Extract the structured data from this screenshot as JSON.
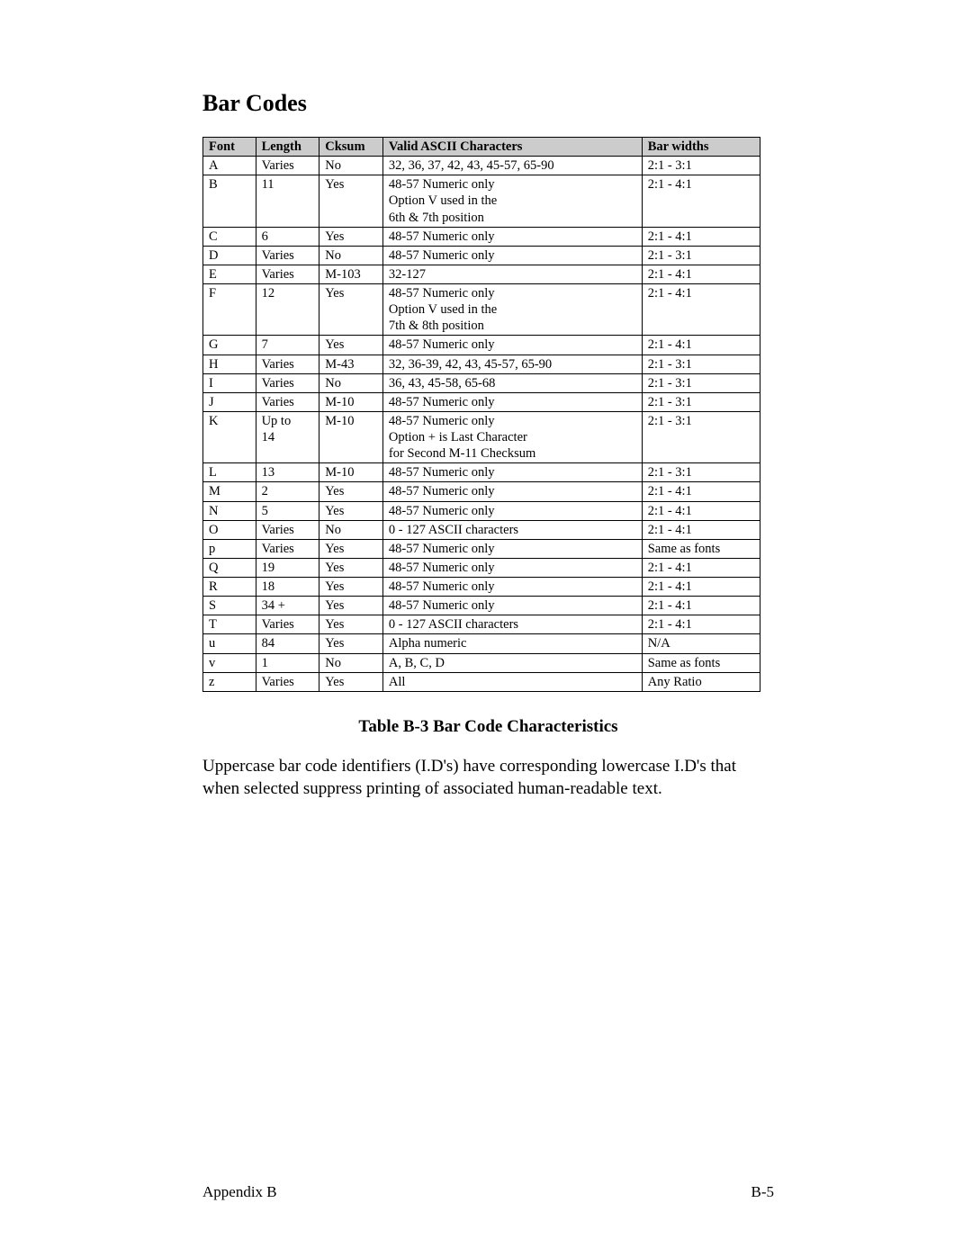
{
  "title": "Bar Codes",
  "table": {
    "columns": [
      "Font",
      "Length",
      "Cksum",
      "Valid ASCII Characters",
      "Bar widths"
    ],
    "rows": [
      [
        "A",
        "Varies",
        "No",
        "32, 36, 37, 42, 43, 45-57, 65-90",
        "2:1 - 3:1"
      ],
      [
        "B",
        "11",
        "Yes",
        "48-57 Numeric only\nOption V used in the\n6th & 7th position",
        "2:1 - 4:1"
      ],
      [
        "C",
        "6",
        "Yes",
        "48-57 Numeric only",
        "2:1 - 4:1"
      ],
      [
        "D",
        "Varies",
        "No",
        "48-57 Numeric only",
        "2:1 - 3:1"
      ],
      [
        "E",
        "Varies",
        "M-103",
        "32-127",
        "2:1 - 4:1"
      ],
      [
        "F",
        "12",
        "Yes",
        "48-57 Numeric only\nOption V used in the\n7th & 8th position",
        "2:1 - 4:1"
      ],
      [
        "G",
        "7",
        "Yes",
        "48-57 Numeric only",
        "2:1 - 4:1"
      ],
      [
        "H",
        "Varies",
        "M-43",
        "32, 36-39, 42, 43, 45-57, 65-90",
        "2:1 - 3:1"
      ],
      [
        "I",
        "Varies",
        "No",
        "36, 43, 45-58, 65-68",
        "2:1 - 3:1"
      ],
      [
        "J",
        "Varies",
        "M-10",
        "48-57 Numeric only",
        "2:1 - 3:1"
      ],
      [
        "K",
        "Up to\n14",
        "M-10",
        "48-57 Numeric only\nOption + is Last Character\nfor Second M-11 Checksum",
        "2:1 - 3:1"
      ],
      [
        "L",
        "13",
        "M-10",
        "48-57 Numeric only",
        "2:1 - 3:1"
      ],
      [
        "M",
        "2",
        "Yes",
        "48-57 Numeric only",
        "2:1 - 4:1"
      ],
      [
        "N",
        "5",
        "Yes",
        "48-57 Numeric only",
        "2:1 - 4:1"
      ],
      [
        "O",
        "Varies",
        "No",
        "0 - 127 ASCII characters",
        "2:1 - 4:1"
      ],
      [
        "p",
        "Varies",
        "Yes",
        "48-57 Numeric only",
        "Same as fonts"
      ],
      [
        "Q",
        "19",
        "Yes",
        "48-57 Numeric only",
        "2:1 - 4:1"
      ],
      [
        "R",
        "18",
        "Yes",
        "48-57 Numeric only",
        "2:1 - 4:1"
      ],
      [
        "S",
        "34 +",
        "Yes",
        "48-57 Numeric only",
        "2:1 - 4:1"
      ],
      [
        "T",
        "Varies",
        "Yes",
        "0 - 127 ASCII characters",
        "2:1 - 4:1"
      ],
      [
        "u",
        "84",
        "Yes",
        "Alpha numeric",
        "N/A"
      ],
      [
        "v",
        "1",
        "No",
        "A, B, C, D",
        "Same as fonts"
      ],
      [
        "z",
        "Varies",
        "Yes",
        "All",
        "Any Ratio"
      ]
    ]
  },
  "caption": "Table B-3   Bar Code Characteristics",
  "paragraph": "Uppercase bar code identifiers (I.D's) have corresponding lowercase I.D's that when selected suppress printing of associated human-readable text.",
  "footer_left": "Appendix B",
  "footer_right": "B-5"
}
